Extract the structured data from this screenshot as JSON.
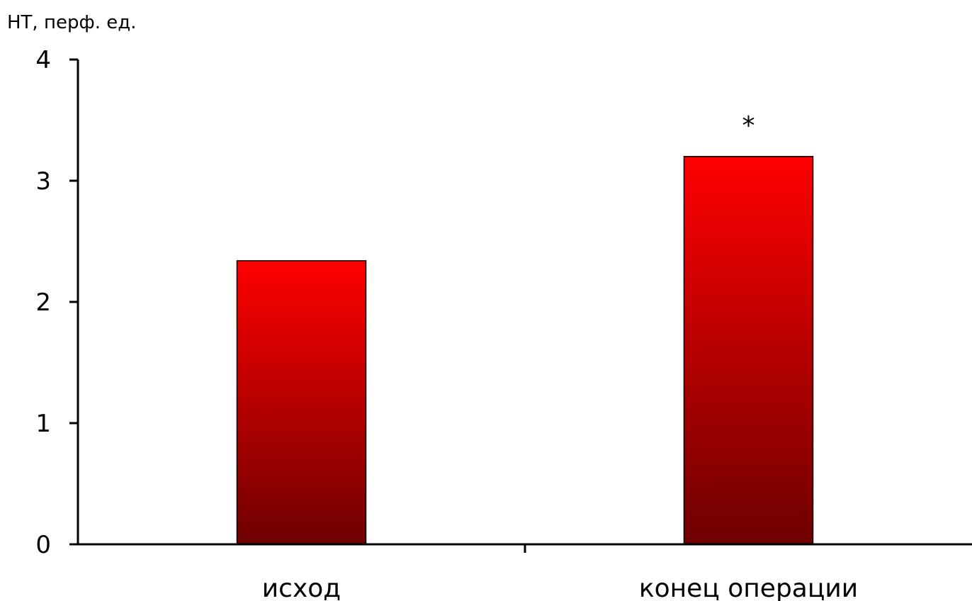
{
  "chart_data": {
    "type": "bar",
    "title": "",
    "ylabel": "HT, перф. ед.",
    "xlabel": "",
    "categories": [
      "исход",
      "конец операции"
    ],
    "values": [
      2.34,
      3.2
    ],
    "ylim": [
      0,
      4
    ],
    "yticks": [
      "0",
      "1",
      "2",
      "3",
      "4"
    ],
    "annotations": [
      "",
      "*"
    ],
    "grid": false,
    "legend": "none",
    "colors": {
      "bar_top": "#ff0000",
      "bar_bottom": "#6e0000",
      "axis": "#000000"
    }
  }
}
